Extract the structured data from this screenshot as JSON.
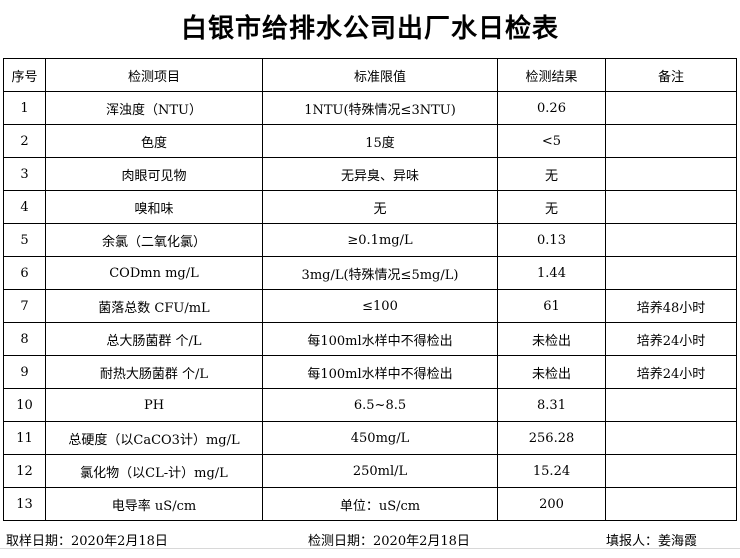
{
  "title": "白银市给排水公司出厂水日检表",
  "headers": [
    "序号",
    "检测项目",
    "标准限值",
    "检测结果",
    "备注"
  ],
  "rows": [
    [
      "1",
      "浑浊度（NTU）",
      "1NTU(特殊情况≤3NTU)",
      "0.26",
      ""
    ],
    [
      "2",
      "色度",
      "15度",
      "<5",
      ""
    ],
    [
      "3",
      "肉眼可见物",
      "无异臭、异味",
      "无",
      ""
    ],
    [
      "4",
      "嗅和味",
      "无",
      "无",
      ""
    ],
    [
      "5",
      "余氯（二氧化氯）",
      "≥0.1mg/L",
      "0.13",
      ""
    ],
    [
      "6",
      "CODmn mg/L",
      "3mg/L(特殊情况≤5mg/L)",
      "1.44",
      ""
    ],
    [
      "7",
      "菌落总数  CFU/mL",
      "≤100",
      "61",
      "培养48小时"
    ],
    [
      "8",
      "总大肠菌群 个/L",
      "每100ml水样中不得检出",
      "未检出",
      "培养24小时"
    ],
    [
      "9",
      "耐热大肠菌群 个/L",
      "每100ml水样中不得检出",
      "未检出",
      "培养24小时"
    ],
    [
      "10",
      "PH",
      "6.5~8.5",
      "8.31",
      ""
    ],
    [
      "11",
      "总硬度（以CaCO3计）mg/L",
      "450mg/L",
      "256.28",
      ""
    ],
    [
      "12",
      "氯化物（以CL-计）mg/L",
      "250ml/L",
      "15.24",
      ""
    ],
    [
      "13",
      "电导率 uS/cm",
      "单位：uS/cm",
      "200",
      ""
    ]
  ],
  "footer": {
    "sample_date": "取样日期：2020年2月18日",
    "test_date": "检测日期：2020年2月18日",
    "reporter": "填报人：姜海霞"
  }
}
